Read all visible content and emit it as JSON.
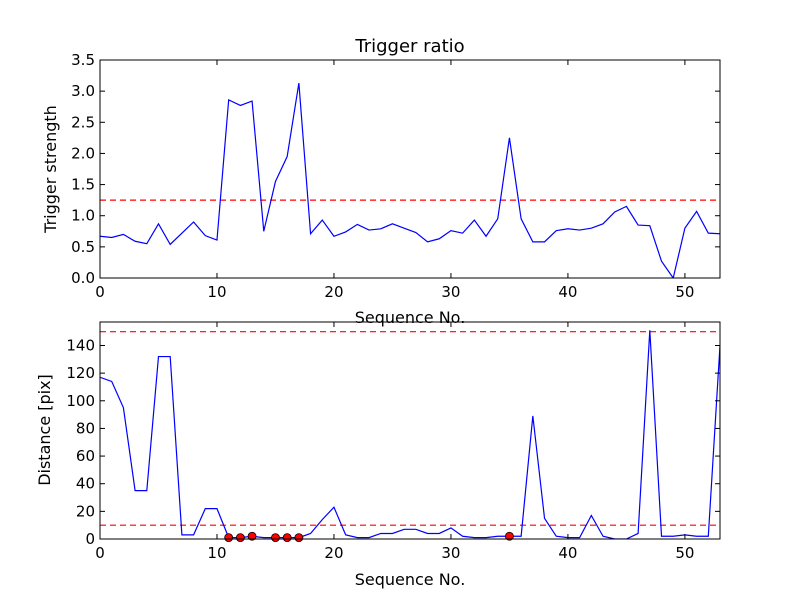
{
  "chart_data": [
    {
      "type": "line",
      "title": "Trigger ratio",
      "xlabel": "Sequence No.",
      "ylabel": "Trigger strength",
      "xlim": [
        0,
        53
      ],
      "ylim": [
        0,
        3.5
      ],
      "xticks": [
        0,
        10,
        20,
        30,
        40,
        50
      ],
      "yticks": [
        0.0,
        0.5,
        1.0,
        1.5,
        2.0,
        2.5,
        3.0,
        3.5
      ],
      "ytick_labels": [
        "0.0",
        "0.5",
        "1.0",
        "1.5",
        "2.0",
        "2.5",
        "3.0",
        "3.5"
      ],
      "series": [
        {
          "color": "#0000ff",
          "x": [
            0,
            1,
            2,
            3,
            4,
            5,
            6,
            7,
            8,
            9,
            10,
            11,
            12,
            13,
            14,
            15,
            16,
            17,
            18,
            19,
            20,
            21,
            22,
            23,
            24,
            25,
            26,
            27,
            28,
            29,
            30,
            31,
            32,
            33,
            34,
            35,
            36,
            37,
            38,
            39,
            40,
            41,
            42,
            43,
            44,
            45,
            46,
            47,
            48,
            49,
            50,
            51,
            52,
            53
          ],
          "values": [
            0.67,
            0.65,
            0.7,
            0.59,
            0.55,
            0.87,
            0.54,
            0.72,
            0.9,
            0.68,
            0.61,
            2.86,
            2.77,
            2.84,
            0.75,
            1.55,
            1.95,
            3.13,
            0.71,
            0.93,
            0.67,
            0.74,
            0.86,
            0.77,
            0.79,
            0.87,
            0.8,
            0.73,
            0.58,
            0.63,
            0.76,
            0.72,
            0.93,
            0.67,
            0.95,
            2.25,
            0.95,
            0.58,
            0.58,
            0.76,
            0.79,
            0.77,
            0.8,
            0.87,
            1.06,
            1.15,
            0.85,
            0.84,
            0.27,
            0.0,
            0.8,
            1.07,
            0.72,
            0.71
          ]
        }
      ],
      "hlines": [
        {
          "y": 1.25,
          "color": "#ff0000",
          "style": "dashed"
        }
      ]
    },
    {
      "type": "line",
      "title": "",
      "xlabel": "Sequence No.",
      "ylabel": "Distance [pix]",
      "xlim": [
        0,
        53
      ],
      "ylim": [
        0,
        157
      ],
      "xticks": [
        0,
        10,
        20,
        30,
        40,
        50
      ],
      "yticks": [
        0,
        20,
        40,
        60,
        80,
        100,
        120,
        140
      ],
      "ytick_labels": [
        "0",
        "20",
        "40",
        "60",
        "80",
        "100",
        "120",
        "140"
      ],
      "series": [
        {
          "color": "#0000ff",
          "x": [
            0,
            1,
            2,
            3,
            4,
            5,
            6,
            7,
            8,
            9,
            10,
            11,
            12,
            13,
            14,
            15,
            16,
            17,
            18,
            19,
            20,
            21,
            22,
            23,
            24,
            25,
            26,
            27,
            28,
            29,
            30,
            31,
            32,
            33,
            34,
            35,
            36,
            37,
            38,
            39,
            40,
            41,
            42,
            43,
            44,
            45,
            46,
            47,
            48,
            49,
            50,
            51,
            52,
            53
          ],
          "values": [
            117,
            114,
            95,
            35,
            35,
            132,
            132,
            3,
            3,
            22,
            22,
            1,
            1,
            2,
            1,
            1,
            1,
            1,
            4,
            14,
            23,
            3,
            1,
            1,
            4,
            4,
            7,
            7,
            4,
            4,
            8,
            2,
            1,
            1,
            2,
            2,
            2,
            89,
            15,
            2,
            1,
            1,
            17,
            2,
            0,
            0,
            4,
            151,
            2,
            2,
            3,
            2,
            2,
            140
          ]
        }
      ],
      "markers": {
        "color": "#ff0000",
        "x": [
          11,
          12,
          13,
          15,
          16,
          17,
          35
        ],
        "values": [
          1,
          1,
          2,
          1,
          1,
          1,
          2
        ]
      },
      "hlines": [
        {
          "y": 150,
          "color": "#ff0000",
          "style": "dashed"
        },
        {
          "y": 10,
          "color": "#ff0000",
          "style": "dashed"
        }
      ]
    }
  ]
}
